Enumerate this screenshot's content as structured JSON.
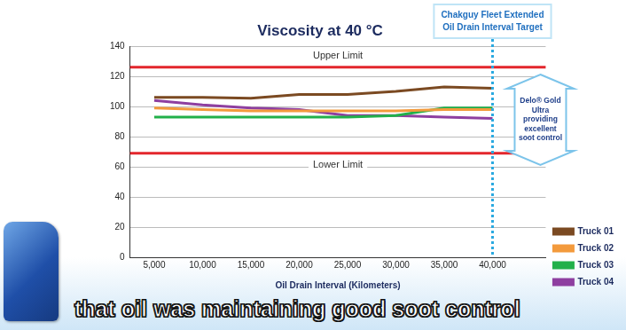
{
  "chart_data": {
    "type": "line",
    "title": "Viscosity at 40 °C",
    "x_label": "Oil Drain Interval (Kilometers)",
    "x": [
      5000,
      10000,
      15000,
      20000,
      25000,
      30000,
      35000,
      40000
    ],
    "xlim": [
      2500,
      45500
    ],
    "xticks": [
      {
        "value": 5000,
        "label": "5,000"
      },
      {
        "value": 10000,
        "label": "10,000"
      },
      {
        "value": 15000,
        "label": "15,000"
      },
      {
        "value": 20000,
        "label": "20,000"
      },
      {
        "value": 25000,
        "label": "25,000"
      },
      {
        "value": 30000,
        "label": "30,000"
      },
      {
        "value": 35000,
        "label": "35,000"
      },
      {
        "value": 40000,
        "label": "40,000"
      }
    ],
    "ylim": [
      0,
      140
    ],
    "yticks": [
      0,
      20,
      40,
      60,
      80,
      100,
      120,
      140
    ],
    "grid": "y",
    "legend": "right",
    "series": [
      {
        "name": "Truck 01",
        "color": "#7b4a22",
        "values": [
          106,
          106,
          105.5,
          108,
          108,
          110,
          113,
          112
        ]
      },
      {
        "name": "Truck 02",
        "color": "#f39a3c",
        "values": [
          99,
          98,
          97,
          97,
          97,
          97,
          98,
          98
        ]
      },
      {
        "name": "Truck 03",
        "color": "#22b04a",
        "values": [
          93,
          93,
          93,
          93,
          93,
          94,
          99,
          99
        ]
      },
      {
        "name": "Truck 04",
        "color": "#8e3fa0",
        "values": [
          104,
          101,
          99,
          98,
          94,
          94,
          93,
          92
        ]
      }
    ],
    "reference_lines": [
      {
        "label": "Upper Limit",
        "value": 126,
        "color": "#e3262c"
      },
      {
        "label": "Lower Limit",
        "value": 69,
        "color": "#e3262c"
      }
    ],
    "target": {
      "x": 40000,
      "label": "Chakguy Fleet Extended Oil Drain Interval Target",
      "color": "#2aa9e0"
    },
    "annotation": "Delo® Gold Ultra providing excellent soot control"
  },
  "caption": "that oil was maintaining good soot control"
}
